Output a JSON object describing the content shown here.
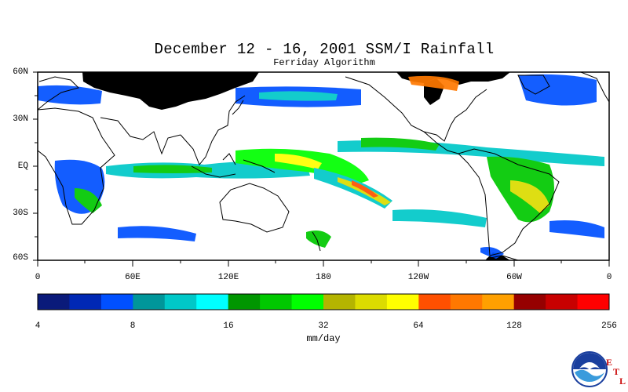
{
  "header": {
    "title": "December 12 - 16, 2001 SSM/I Rainfall",
    "subtitle": "Ferriday Algorithm"
  },
  "map": {
    "lat_labels": [
      "60N",
      "30N",
      "EQ",
      "30S",
      "60S"
    ],
    "lon_labels": [
      "0",
      "60E",
      "120E",
      "180",
      "120W",
      "60W",
      "0"
    ],
    "land_color": "#ffffff",
    "no_data_color": "#000000"
  },
  "colorbar": {
    "colors": [
      "#0a1a7a",
      "#0028b4",
      "#0050ff",
      "#00969a",
      "#00c8c8",
      "#00ffff",
      "#009600",
      "#00c800",
      "#00ff00",
      "#b4b400",
      "#dcdc00",
      "#ffff00",
      "#ff5000",
      "#ff7800",
      "#ffa000",
      "#960000",
      "#c80000",
      "#ff0000"
    ],
    "tick_labels": [
      "4",
      "8",
      "16",
      "32",
      "64",
      "128",
      "256"
    ],
    "units": "mm/day"
  },
  "logos": {
    "noaa": "noaa-logo",
    "etl_letters": [
      "E",
      "T",
      "L"
    ]
  }
}
